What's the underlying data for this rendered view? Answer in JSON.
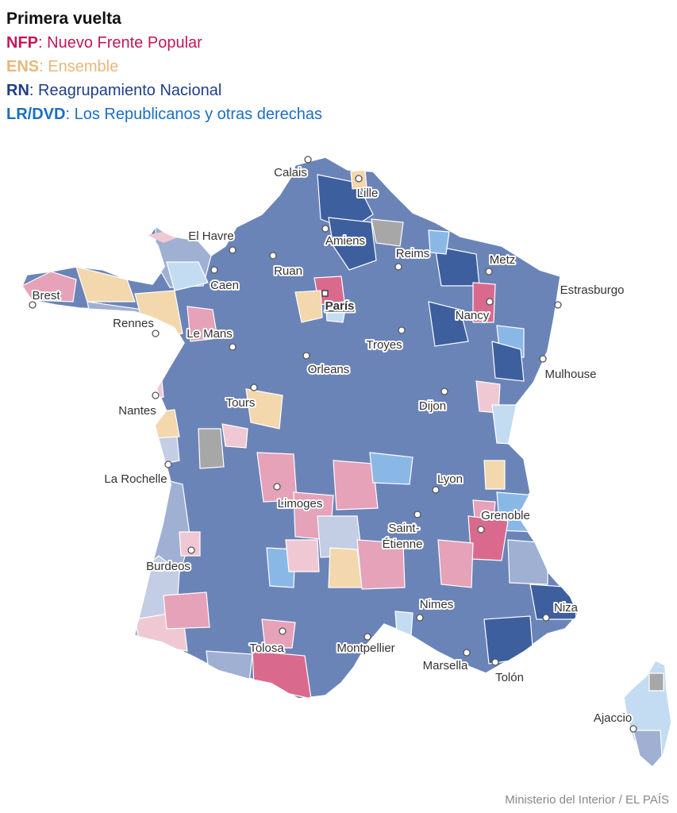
{
  "legend": {
    "title": "Primera vuelta",
    "items": [
      {
        "abbr": "NFP",
        "name": "Nuevo Frente Popular",
        "color": "#c2185b"
      },
      {
        "abbr": "ENS",
        "name": "Ensemble",
        "color": "#e9b77a"
      },
      {
        "abbr": "RN",
        "name": "Reagrupamiento Nacional",
        "color": "#1f3f87"
      },
      {
        "abbr": "LR/DVD",
        "name": "Los Republicanos y otras derechas",
        "color": "#1a6fc4"
      }
    ]
  },
  "palette": {
    "rn_dark": "#3d5f9e",
    "rn_mid": "#6b84b8",
    "rn_light": "#9fb0d2",
    "rn_pale": "#c3cde3",
    "nfp_dark": "#d96a8e",
    "nfp_mid": "#e6a2b8",
    "nfp_light": "#f0c8d4",
    "ens_light": "#f3d7ad",
    "lr_mid": "#8ab8e6",
    "lr_light": "#c3dcf2",
    "other": "#a7a7a7"
  },
  "cities": [
    {
      "name": "Calais"
    },
    {
      "name": "Lille"
    },
    {
      "name": "El Havre"
    },
    {
      "name": "Amiens"
    },
    {
      "name": "Reims"
    },
    {
      "name": "Metz"
    },
    {
      "name": "Ruan"
    },
    {
      "name": "Caen"
    },
    {
      "name": "Estrasburgo"
    },
    {
      "name": "Brest"
    },
    {
      "name": "París"
    },
    {
      "name": "Nancy"
    },
    {
      "name": "Rennes"
    },
    {
      "name": "Le Mans"
    },
    {
      "name": "Troyes"
    },
    {
      "name": "Orleans"
    },
    {
      "name": "Mulhouse"
    },
    {
      "name": "Nantes"
    },
    {
      "name": "Tours"
    },
    {
      "name": "Dijon"
    },
    {
      "name": "La Rochelle"
    },
    {
      "name": "Lyon"
    },
    {
      "name": "Limoges"
    },
    {
      "name": "Grenoble"
    },
    {
      "name": "Saint-"
    },
    {
      "name": "Étienne"
    },
    {
      "name": "Burdeos"
    },
    {
      "name": "Nimes"
    },
    {
      "name": "Niza"
    },
    {
      "name": "Tolosa"
    },
    {
      "name": "Montpellier"
    },
    {
      "name": "Marsella"
    },
    {
      "name": "Tolón"
    },
    {
      "name": "Ajaccio"
    }
  ],
  "source": "Ministerio del Interior / EL PAÍS"
}
